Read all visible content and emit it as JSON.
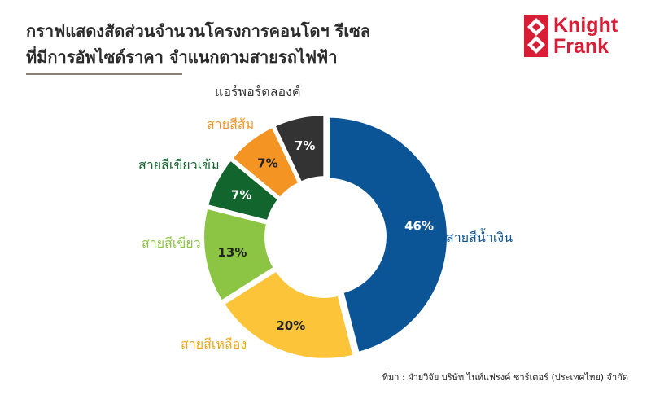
{
  "title": {
    "line1": "กราฟแสดงสัดส่วนจำนวนโครงการคอนโดฯ รีเซล",
    "line2": "ที่มีการอัพไซด์ราคา จำแนกตามสายรถไฟฟ้า"
  },
  "logo": {
    "line1": "Knight",
    "line2": "Frank",
    "color": "#d71e36"
  },
  "source": "ที่มา : ฝ่ายวิจัย บริษัท ไนท์แฟรงค์ ชาร์เตอร์ (ประเทศไทย) จำกัด",
  "chart_data": {
    "type": "pie",
    "donut": true,
    "legend": "labels-outside",
    "slices": [
      {
        "label": "สายสีน้ำเงิน",
        "value": 46,
        "value_label": "46%",
        "color": "#0b5597",
        "label_color": "#0b5597"
      },
      {
        "label": "สายสีเหลือง",
        "value": 20,
        "value_label": "20%",
        "color": "#fcc539",
        "label_color": "#f0a815"
      },
      {
        "label": "สายสีเขียว",
        "value": 13,
        "value_label": "13%",
        "color": "#8cc444",
        "label_color": "#8cc444"
      },
      {
        "label": "สายสีเขียวเข้ม",
        "value": 7,
        "value_label": "7%",
        "color": "#13652e",
        "label_color": "#13652e"
      },
      {
        "label": "สายสีส้ม",
        "value": 7,
        "value_label": "7%",
        "color": "#f49423",
        "label_color": "#f49423"
      },
      {
        "label": "แอร์พอร์ตลองค์",
        "value": 7,
        "value_label": "7%",
        "color": "#333333",
        "label_color": "#333333"
      }
    ]
  }
}
